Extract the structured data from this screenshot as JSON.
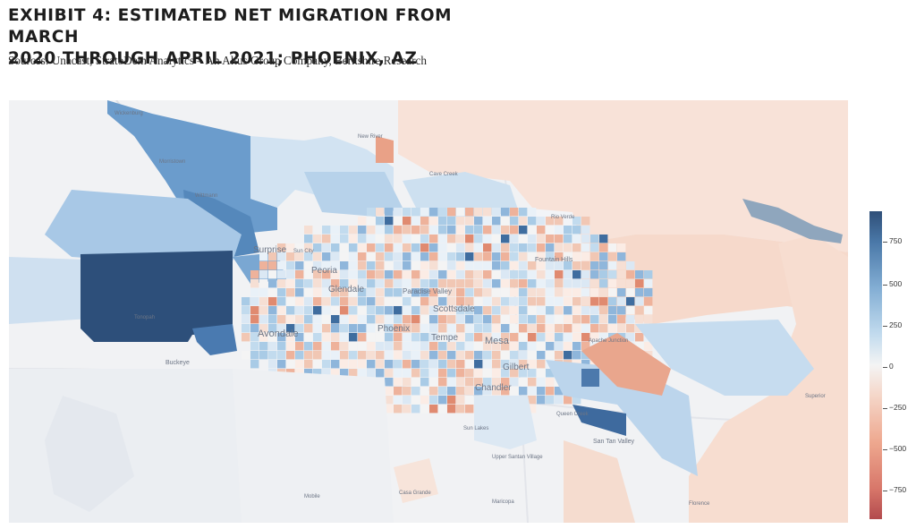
{
  "title_line1": "EXHIBIT 4: ESTIMATED NET MIGRATION FROM MARCH",
  "title_line2": "2020 THROUGH APRIL 2021; PHOENIX, AZ",
  "source": "Sources: Unacast, StratoDem Analytics – An Altus Group Company, Berkshire Research",
  "legend": {
    "ticks": [
      "750",
      "500",
      "250",
      "0",
      "−250",
      "−500",
      "−750"
    ],
    "colors": {
      "high": "#2f4f78",
      "mid": "#f4f4f4",
      "low": "#b24a4d"
    }
  },
  "places": {
    "surprise": "Surprise",
    "sun_city": "Sun City",
    "peoria": "Peoria",
    "glendale": "Glendale",
    "paradise_valley": "Paradise Valley",
    "scottsdale": "Scottsdale",
    "avondale": "Avondale",
    "phoenix": "Phoenix",
    "tempe": "Tempe",
    "mesa": "Mesa",
    "gilbert": "Gilbert",
    "chandler": "Chandler",
    "apache_junction": "Apache Junction",
    "queen_creek": "Queen Creek",
    "san_tan_valley": "San Tan Valley",
    "buckeye": "Buckeye",
    "tonopah": "Tonopah",
    "wittmann": "Wittmann",
    "morristown": "Morristown",
    "wickenburg": "Wickenburg",
    "new_river": "New River",
    "cave_creek": "Cave Creek",
    "fountain_hills": "Fountain Hills",
    "rio_verde": "Rio Verde",
    "sun_lakes": "Sun Lakes",
    "maricopa": "Maricopa",
    "mobile": "Mobile",
    "florence": "Florence",
    "superior": "Superior",
    "upper_santan_village": "Upper Santan Village",
    "casa_grande": "Casa Grande"
  }
}
